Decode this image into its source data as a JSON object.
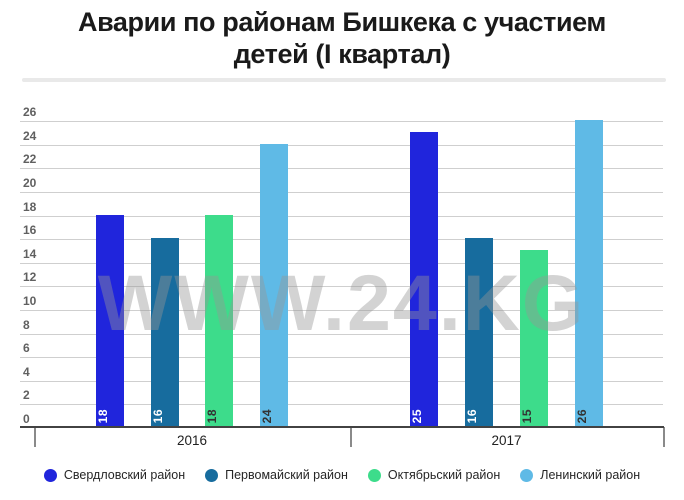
{
  "title": {
    "line1": "Аварии по районам Бишкека с участием",
    "line2": "детей (I квартал)"
  },
  "watermark": "WWW.24.KG",
  "chart_data": {
    "type": "bar",
    "title": "Аварии по районам Бишкека с участием детей (I квартал)",
    "categories": [
      "2016",
      "2017"
    ],
    "series": [
      {
        "name": "Свердловский район",
        "color": "#2025DC",
        "label_color": "#ffffff",
        "values": [
          18,
          25
        ]
      },
      {
        "name": "Первомайский район",
        "color": "#176C9E",
        "label_color": "#ffffff",
        "values": [
          16,
          16
        ]
      },
      {
        "name": "Октябрьский район",
        "color": "#3DDC8B",
        "label_color": "#333333",
        "values": [
          18,
          15
        ]
      },
      {
        "name": "Ленинский район",
        "color": "#5FBAE6",
        "label_color": "#333333",
        "values": [
          24,
          26
        ]
      }
    ],
    "xlabel": "",
    "ylabel": "",
    "ylim": [
      0,
      26
    ],
    "yticks": [
      0,
      2,
      4,
      6,
      8,
      10,
      12,
      14,
      16,
      18,
      20,
      22,
      24,
      26
    ],
    "grid": true,
    "legend_position": "bottom",
    "bar_value_labels": true
  }
}
